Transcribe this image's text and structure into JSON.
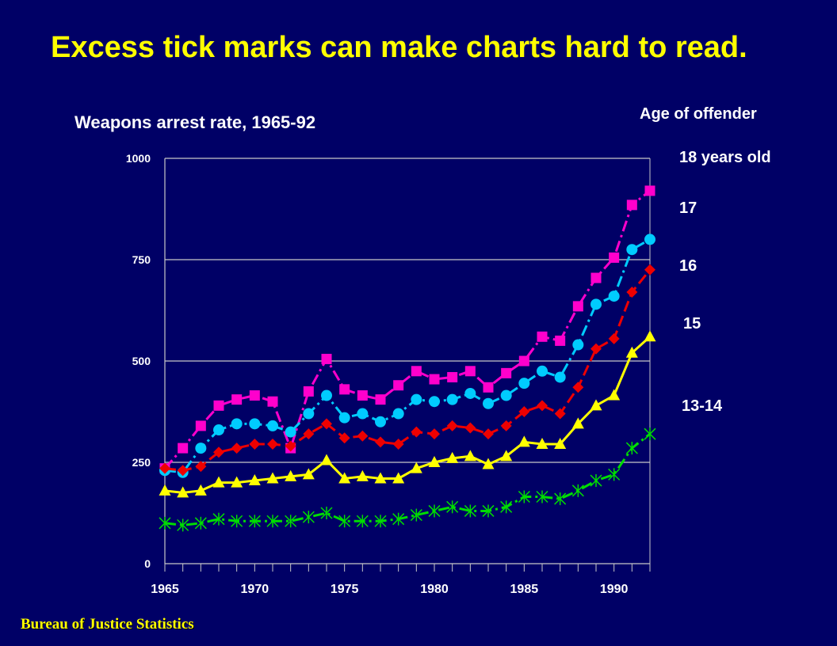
{
  "slide": {
    "title": "Excess tick marks can make charts hard to read.",
    "source": "Bureau of Justice Statistics"
  },
  "chart_data": {
    "type": "line",
    "title": "Weapons arrest rate, 1965-92",
    "legend_title": "Age of offender",
    "legend_placement": "right",
    "xlim": [
      1965,
      1992
    ],
    "ylim": [
      0,
      1000
    ],
    "x_tick_labels": [
      "1965",
      "1970",
      "1975",
      "1980",
      "1985",
      "1990"
    ],
    "y_tick_labels": [
      "0",
      "250",
      "500",
      "750",
      "1000"
    ],
    "x_tick_values": [
      1965,
      1970,
      1975,
      1980,
      1985,
      1990
    ],
    "y_tick_values": [
      0,
      250,
      500,
      750,
      1000
    ],
    "minor_x_ticks_every_year": true,
    "grid": "horizontal",
    "x": [
      1965,
      1966,
      1967,
      1968,
      1969,
      1970,
      1971,
      1972,
      1973,
      1974,
      1975,
      1976,
      1977,
      1978,
      1979,
      1980,
      1981,
      1982,
      1983,
      1984,
      1985,
      1986,
      1987,
      1988,
      1989,
      1990,
      1991,
      1992
    ],
    "series": [
      {
        "name": "18 years old",
        "color": "#ff00cc",
        "marker": "square",
        "dash": "dashdot",
        "values": [
          235,
          285,
          340,
          390,
          405,
          415,
          400,
          285,
          425,
          505,
          430,
          415,
          405,
          440,
          475,
          455,
          460,
          475,
          435,
          470,
          500,
          560,
          550,
          635,
          705,
          755,
          885,
          920
        ]
      },
      {
        "name": "17",
        "color": "#00ccff",
        "marker": "circle",
        "dash": "dashdot",
        "values": [
          230,
          225,
          285,
          330,
          345,
          345,
          340,
          325,
          370,
          415,
          360,
          370,
          350,
          370,
          405,
          400,
          405,
          420,
          395,
          415,
          445,
          475,
          460,
          540,
          640,
          660,
          775,
          800
        ]
      },
      {
        "name": "16",
        "color": "#ee0000",
        "marker": "diamond",
        "dash": "dashed",
        "values": [
          235,
          230,
          240,
          275,
          285,
          295,
          295,
          290,
          320,
          345,
          310,
          315,
          300,
          295,
          325,
          320,
          340,
          335,
          320,
          340,
          375,
          390,
          370,
          435,
          530,
          555,
          670,
          725
        ]
      },
      {
        "name": "15",
        "color": "#ffff00",
        "marker": "triangle",
        "dash": "solid",
        "values": [
          180,
          175,
          180,
          200,
          200,
          205,
          210,
          215,
          220,
          255,
          210,
          215,
          210,
          210,
          235,
          250,
          260,
          265,
          245,
          265,
          300,
          295,
          295,
          345,
          390,
          415,
          520,
          560
        ]
      },
      {
        "name": "13-14",
        "color": "#00dd00",
        "marker": "asterisk",
        "dash": "dashdot",
        "values": [
          100,
          95,
          100,
          110,
          105,
          105,
          105,
          105,
          115,
          125,
          105,
          105,
          105,
          110,
          120,
          130,
          140,
          130,
          130,
          140,
          165,
          165,
          160,
          180,
          205,
          220,
          285,
          320
        ]
      }
    ]
  }
}
